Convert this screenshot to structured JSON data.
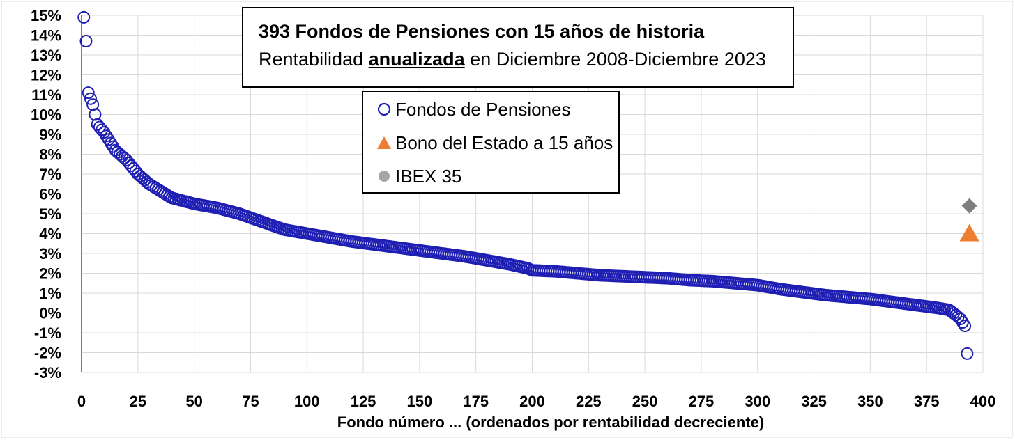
{
  "chart_data": {
    "type": "scatter",
    "title": "393 Fondos de Pensiones con 15 años de historia",
    "subtitle": {
      "before": "Rentabilidad ",
      "emphasis": "anualizada",
      "after": " en Diciembre 2008-Diciembre 2023"
    },
    "xlabel": "Fondo número ... (ordenados por rentabilidad decreciente)",
    "ylabel": "",
    "xlim": [
      0,
      400
    ],
    "ylim": [
      -3,
      15
    ],
    "x_ticks": [
      "0",
      "25",
      "50",
      "75",
      "100",
      "125",
      "150",
      "175",
      "200",
      "225",
      "250",
      "275",
      "300",
      "325",
      "350",
      "375",
      "400"
    ],
    "y_ticks": [
      "15%",
      "14%",
      "13%",
      "12%",
      "11%",
      "10%",
      "9%",
      "8%",
      "7%",
      "6%",
      "5%",
      "4%",
      "3%",
      "2%",
      "1%",
      "0%",
      "-1%",
      "-2%",
      "-3%"
    ],
    "grid": true,
    "legend_position": "top-center",
    "series": [
      {
        "name": "Fondos de Pensiones",
        "marker": "circle-open",
        "color": "#1f1fb4",
        "x": [
          1,
          2,
          3,
          5,
          7,
          10,
          15,
          20,
          25,
          30,
          40,
          50,
          60,
          70,
          80,
          90,
          100,
          110,
          120,
          130,
          140,
          150,
          160,
          170,
          180,
          190,
          198,
          200,
          210,
          220,
          230,
          240,
          250,
          260,
          270,
          280,
          290,
          300,
          310,
          320,
          330,
          340,
          350,
          360,
          370,
          380,
          385,
          388,
          390,
          392,
          393
        ],
        "y": [
          14.9,
          13.7,
          11.1,
          10.5,
          9.5,
          9.1,
          8.2,
          7.7,
          7.0,
          6.5,
          5.8,
          5.5,
          5.3,
          5.0,
          4.6,
          4.2,
          4.0,
          3.8,
          3.6,
          3.45,
          3.3,
          3.15,
          3.0,
          2.85,
          2.65,
          2.45,
          2.25,
          2.15,
          2.1,
          2.0,
          1.9,
          1.85,
          1.8,
          1.75,
          1.65,
          1.6,
          1.5,
          1.4,
          1.2,
          1.05,
          0.9,
          0.8,
          0.7,
          0.55,
          0.4,
          0.25,
          0.15,
          -0.1,
          -0.3,
          -0.65,
          -2.05
        ]
      },
      {
        "name": "Bono del Estado a 15 años",
        "marker": "triangle",
        "color": "#ed7d31",
        "x": [
          394
        ],
        "y": [
          4.0
        ]
      },
      {
        "name": "IBEX 35",
        "marker": "diamond",
        "color": "#7f7f7f",
        "x": [
          394
        ],
        "y": [
          5.4
        ]
      }
    ]
  },
  "colors": {
    "grid": "#d9d9d9",
    "axis": "#000000",
    "fondos": "#1f1fb4",
    "bono": "#ed7d31",
    "ibex": "#7f7f7f",
    "ibex_legend": "#a6a6a6"
  }
}
